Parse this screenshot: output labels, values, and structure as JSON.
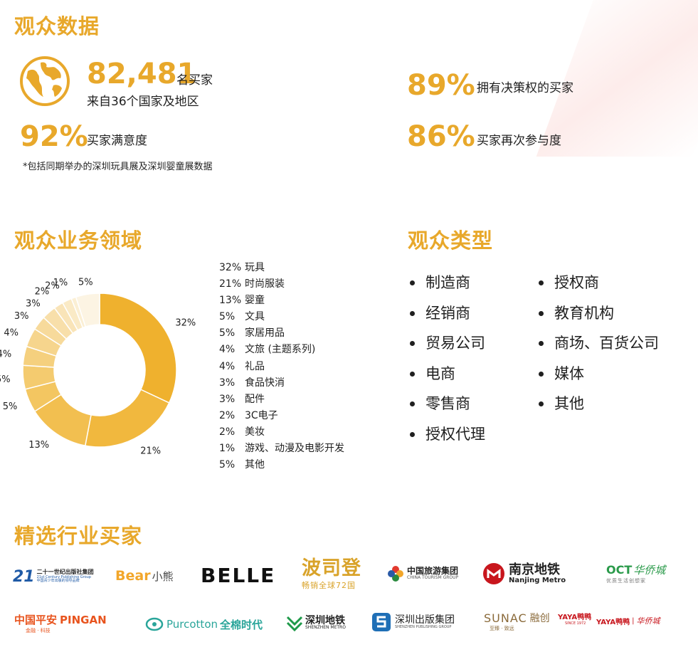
{
  "audience_data": {
    "title": "观众数据",
    "buyers": {
      "value": "82,481",
      "unit": "名买家",
      "sub": "来自36个国家及地区"
    },
    "decision": {
      "value": "89%",
      "label": "拥有决策权的买家"
    },
    "satisfaction": {
      "value": "92%",
      "label": "买家满意度"
    },
    "return": {
      "value": "86%",
      "label": "买家再次参与度"
    },
    "note": "*包括同期举办的深圳玩具展及深圳婴童展数据"
  },
  "business": {
    "title": "观众业务领域",
    "legend": [
      {
        "pct": "32%",
        "label": "玩具"
      },
      {
        "pct": "21%",
        "label": "时尚服装"
      },
      {
        "pct": "13%",
        "label": "婴童"
      },
      {
        "pct": "5%",
        "label": "文具"
      },
      {
        "pct": "5%",
        "label": "家居用品"
      },
      {
        "pct": "4%",
        "label": "文旅 (主题系列)"
      },
      {
        "pct": "4%",
        "label": "礼品"
      },
      {
        "pct": "3%",
        "label": "食品快消"
      },
      {
        "pct": "3%",
        "label": "配件"
      },
      {
        "pct": "2%",
        "label": "3C电子"
      },
      {
        "pct": "2%",
        "label": "美妆"
      },
      {
        "pct": "1%",
        "label": "游戏、动漫及电影开发"
      },
      {
        "pct": "5%",
        "label": "其他"
      }
    ]
  },
  "chart_data": {
    "type": "pie",
    "categories": [
      "玩具",
      "时尚服装",
      "婴童",
      "文具",
      "家居用品",
      "文旅 (主题系列)",
      "礼品",
      "食品快消",
      "配件",
      "3C电子",
      "美妆",
      "游戏、动漫及电影开发",
      "其他"
    ],
    "values": [
      32,
      21,
      13,
      5,
      5,
      4,
      4,
      3,
      3,
      2,
      2,
      1,
      5
    ],
    "data_labels": [
      "32%",
      "21%",
      "13%",
      "5%",
      "5%",
      "4%",
      "4%",
      "3%",
      "3%",
      "2%",
      "2%",
      "1%",
      "5%"
    ],
    "colors": [
      "#efb12e",
      "#f1b83e",
      "#f2bf50",
      "#f3c661",
      "#f4cb6f",
      "#f5d07e",
      "#f6d58d",
      "#f7da9b",
      "#f8dfaa",
      "#f9e4b8",
      "#faeac6",
      "#fbefd4",
      "#fcf4e3"
    ],
    "donut": true,
    "legend_position": "right"
  },
  "audience_types": {
    "title": "观众类型",
    "col1": [
      "制造商",
      "经销商",
      "贸易公司",
      "电商",
      "零售商",
      "授权代理"
    ],
    "col2": [
      "授权商",
      "教育机构",
      "商场、百货公司",
      "媒体",
      "其他"
    ]
  },
  "buyers_section": {
    "title": "精选行业买家",
    "logos": {
      "c21": {
        "mark": "21",
        "line1": "二十一世纪出版社集团",
        "line2": "21st Century Publishing Group",
        "line3": "中国青少年出版的领导品牌"
      },
      "bear": {
        "text1": "Bear",
        "text2": "小熊"
      },
      "belle": {
        "text": "BELLE"
      },
      "boston": {
        "text": "波司登",
        "sub": "畅销全球72国"
      },
      "cts": {
        "text": "中国旅游集团",
        "sub": "CHINA TOURISM GROUP"
      },
      "nanjing": {
        "text": "南京地铁",
        "sub": "Nanjing Metro"
      },
      "oct": {
        "text1": "OCT",
        "text2": "华侨城",
        "sub": "优质生活创想家"
      },
      "pingan": {
        "text1": "中国平安",
        "text2": "PINGAN",
        "sub": "金融 · 科技"
      },
      "purcotton": {
        "text1": "Purcotton",
        "text2": "全棉时代"
      },
      "szmetro": {
        "text": "深圳地铁",
        "sub": "SHENZHEN METRO"
      },
      "szpub": {
        "text": "深圳出版集团",
        "sub": "SHENZHEN PUBLISHING GROUP"
      },
      "sunac": {
        "text1": "SUNAC",
        "text2": "融创",
        "sub": "至臻 · 致远"
      },
      "yaya1": {
        "text": "YAYA鸭鸭",
        "sub": "SINCE 1972"
      },
      "yaya2": {
        "text1": "YAYA鸭鸭",
        "text2": "华侨城"
      }
    }
  }
}
